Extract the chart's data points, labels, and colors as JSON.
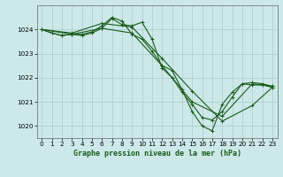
{
  "title": "Graphe pression niveau de la mer (hPa)",
  "background_color": "#cce8e8",
  "grid_color": "#aacccc",
  "line_color": "#1a5c1a",
  "x_min": -0.5,
  "x_max": 23.5,
  "y_min": 1019.5,
  "y_max": 1025.0,
  "yticks": [
    1020,
    1021,
    1022,
    1023,
    1024
  ],
  "xticks": [
    0,
    1,
    2,
    3,
    4,
    5,
    6,
    7,
    8,
    9,
    10,
    11,
    12,
    13,
    14,
    15,
    16,
    17,
    18,
    19,
    20,
    21,
    22,
    23
  ],
  "lines": [
    {
      "x": [
        0,
        1,
        2,
        3,
        4,
        5,
        6,
        7,
        8,
        9,
        10,
        11,
        12,
        13,
        14,
        15,
        16,
        17,
        18,
        19,
        20,
        21,
        22,
        23
      ],
      "y": [
        1024.0,
        1023.85,
        1023.75,
        1023.8,
        1023.8,
        1023.9,
        1024.15,
        1024.5,
        1024.35,
        1023.8,
        1023.6,
        1023.1,
        1022.5,
        1022.3,
        1021.5,
        1020.6,
        1020.0,
        1019.8,
        1020.9,
        1021.4,
        1021.75,
        1021.8,
        1021.75,
        1021.65
      ]
    },
    {
      "x": [
        0,
        1,
        2,
        3,
        4,
        5,
        6,
        7,
        8,
        9,
        10,
        11,
        12,
        13,
        14,
        15,
        16,
        17,
        18,
        19,
        20,
        21,
        22,
        23
      ],
      "y": [
        1024.0,
        1023.85,
        1023.75,
        1023.8,
        1023.75,
        1023.85,
        1024.05,
        1024.45,
        1024.2,
        1024.15,
        1024.3,
        1023.6,
        1022.4,
        1022.0,
        1021.4,
        1020.9,
        1020.35,
        1020.25,
        1020.6,
        1021.2,
        1021.75,
        1021.7,
        1021.7,
        1021.6
      ]
    },
    {
      "x": [
        0,
        3,
        6,
        9,
        12,
        15,
        18,
        21,
        23
      ],
      "y": [
        1024.0,
        1023.8,
        1024.05,
        1023.85,
        1022.5,
        1021.0,
        1020.4,
        1021.75,
        1021.65
      ]
    },
    {
      "x": [
        0,
        3,
        6,
        9,
        12,
        15,
        18,
        21,
        23
      ],
      "y": [
        1024.0,
        1023.85,
        1024.25,
        1024.1,
        1022.8,
        1021.45,
        1020.2,
        1020.85,
        1021.6
      ]
    }
  ],
  "xlabel_fontsize": 6,
  "tick_fontsize": 5.2,
  "linewidth": 0.8,
  "marker_size": 3.5,
  "marker_ew": 0.7
}
